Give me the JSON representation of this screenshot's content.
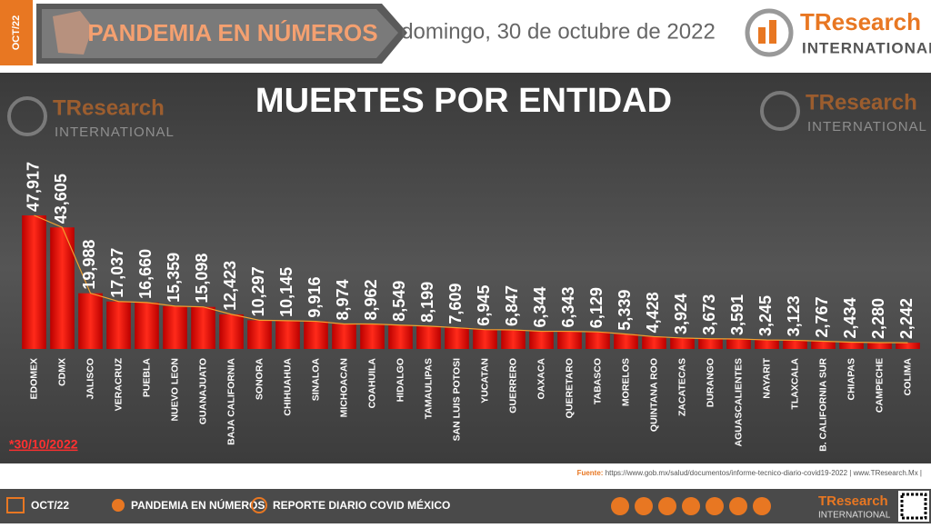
{
  "header": {
    "date_tag": "OCT/22",
    "title": "PANDEMIA EN NÚMEROS",
    "date": "domingo, 30 de octubre de 2022",
    "logo_name": "TResearch",
    "logo_sub": "INTERNATIONAL"
  },
  "chart_data": {
    "type": "bar",
    "title": "MUERTES POR ENTIDAD",
    "color": "#e8140f",
    "categories": [
      "EDOMEX",
      "CDMX",
      "JALISCO",
      "VERACRUZ",
      "PUEBLA",
      "NUEVO LEON",
      "GUANAJUATO",
      "BAJA CALIFORNIA",
      "SONORA",
      "CHIHUAHUA",
      "SINALOA",
      "MICHOACAN",
      "COAHUILA",
      "HIDALGO",
      "TAMAULIPAS",
      "SAN LUIS POTOSI",
      "YUCATAN",
      "GUERRERO",
      "OAXACA",
      "QUERETARO",
      "TABASCO",
      "MORELOS",
      "QUINTANA ROO",
      "ZACATECAS",
      "DURANGO",
      "AGUASCALIENTES",
      "NAYARIT",
      "TLAXCALA",
      "B. CALIFORNIA SUR",
      "CHIAPAS",
      "CAMPECHE",
      "COLIMA"
    ],
    "values": [
      47917,
      43605,
      19988,
      17037,
      16660,
      15359,
      15098,
      12423,
      10297,
      10145,
      9916,
      8974,
      8962,
      8549,
      8199,
      7609,
      6945,
      6847,
      6344,
      6343,
      6129,
      5339,
      4428,
      3924,
      3673,
      3591,
      3245,
      3123,
      2767,
      2434,
      2280,
      2242
    ],
    "value_labels": [
      "47,917",
      "43,605",
      "19,988",
      "17,037",
      "16,660",
      "15,359",
      "15,098",
      "12,423",
      "10,297",
      "10,145",
      "9,916",
      "8,974",
      "8,962",
      "8,549",
      "8,199",
      "7,609",
      "6,945",
      "6,847",
      "6,344",
      "6,343",
      "6,129",
      "5,339",
      "4,428",
      "3,924",
      "3,673",
      "3,591",
      "3,245",
      "3,123",
      "2,767",
      "2,434",
      "2,280",
      "2,242"
    ],
    "trend_color": "#f0a030"
  },
  "note": "*30/10/2022",
  "source": {
    "label": "Fuente:",
    "text": "https://www.gob.mx/salud/documentos/informe-tecnico-diario-covid19-2022 | www.TResearch.Mx |"
  },
  "footer": {
    "date_tag": "OCT/22",
    "section": "PANDEMIA EN NÚMEROS",
    "report": "REPORTE DIARIO COVID MÉXICO"
  }
}
